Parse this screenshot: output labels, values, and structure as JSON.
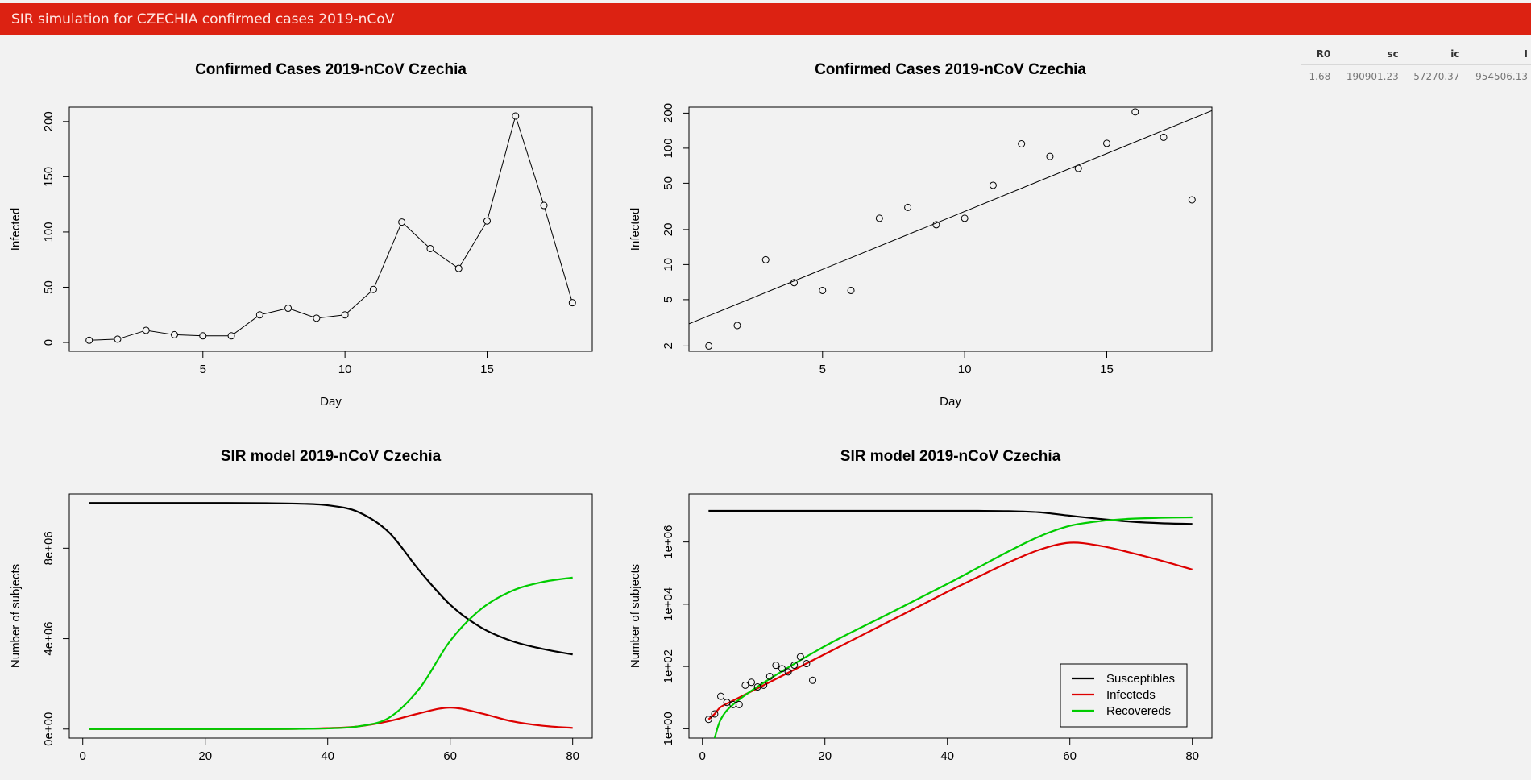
{
  "app": {
    "title": "SIR simulation for CZECHIA confirmed cases 2019-nCoV"
  },
  "params_table": {
    "headers": [
      "R0",
      "sc",
      "ic",
      "I"
    ],
    "rows": [
      [
        "1.68",
        "190901.23",
        "57270.37",
        "954506.13"
      ]
    ]
  },
  "chart_data": [
    {
      "type": "line",
      "title": "Confirmed Cases 2019-nCoV Czechia",
      "xlabel": "Day",
      "ylabel": "Infected",
      "xlim": [
        0.3,
        18.7
      ],
      "ylim": [
        -8,
        213
      ],
      "xticks": [
        5,
        10,
        15
      ],
      "yticks": [
        0,
        50,
        100,
        150,
        200
      ],
      "x": [
        1,
        2,
        3,
        4,
        5,
        6,
        7,
        8,
        9,
        10,
        11,
        12,
        13,
        14,
        15,
        16,
        17,
        18
      ],
      "values": [
        2,
        3,
        11,
        7,
        6,
        6,
        25,
        31,
        22,
        25,
        48,
        109,
        85,
        67,
        110,
        205,
        124,
        36
      ],
      "markers": "circle",
      "grid": false
    },
    {
      "type": "scatter",
      "title": "Confirmed Cases 2019-nCoV Czechia",
      "xlabel": "Day",
      "ylabel": "Infected",
      "yscale": "log",
      "xlim": [
        0.3,
        18.7
      ],
      "ylim": [
        1.8,
        225
      ],
      "xticks": [
        5,
        10,
        15
      ],
      "yticks": [
        2,
        5,
        10,
        20,
        50,
        100,
        200
      ],
      "x": [
        1,
        2,
        3,
        4,
        5,
        6,
        7,
        8,
        9,
        10,
        11,
        12,
        13,
        14,
        15,
        16,
        17,
        18
      ],
      "values": [
        2,
        3,
        11,
        7,
        6,
        6,
        25,
        31,
        22,
        25,
        48,
        109,
        85,
        67,
        110,
        205,
        124,
        36
      ],
      "fit_line": {
        "x": [
          0.3,
          18.7
        ],
        "y": [
          3.1,
          210
        ]
      },
      "grid": false
    },
    {
      "type": "line",
      "title": "SIR model 2019-nCoV Czechia",
      "xlabel": "",
      "ylabel": "Number of subjects",
      "xlim": [
        -2.2,
        83.2
      ],
      "ylim": [
        -400000,
        10400000
      ],
      "xticks": [
        0,
        20,
        40,
        60,
        80
      ],
      "yticks": [
        0,
        4000000,
        8000000
      ],
      "ytick_labels": [
        "0e+00",
        "4e+06",
        "8e+06"
      ],
      "x": [
        1,
        10,
        20,
        30,
        35,
        40,
        45,
        50,
        55,
        60,
        65,
        70,
        75,
        80
      ],
      "series": [
        {
          "color": "#000000",
          "values": [
            10000000,
            10000000,
            10000000,
            9990000,
            9970000,
            9900000,
            9600000,
            8700000,
            7000000,
            5500000,
            4500000,
            3900000,
            3550000,
            3300000
          ]
        },
        {
          "color": "#dd0000",
          "values": [
            2,
            10,
            60,
            2000,
            10000,
            40000,
            120000,
            350000,
            700000,
            950000,
            700000,
            350000,
            150000,
            50000
          ]
        },
        {
          "color": "#00cc00",
          "values": [
            0,
            5,
            40,
            1500,
            8000,
            30000,
            120000,
            500000,
            1800000,
            3900000,
            5300000,
            6100000,
            6500000,
            6700000
          ]
        }
      ],
      "grid": false
    },
    {
      "type": "line",
      "title": "SIR model 2019-nCoV Czechia",
      "xlabel": "",
      "ylabel": "Number of subjects",
      "yscale": "log",
      "xlim": [
        -2.2,
        83.2
      ],
      "ylim": [
        0.5,
        35000000
      ],
      "xticks": [
        0,
        20,
        40,
        60,
        80
      ],
      "yticks": [
        1,
        100,
        10000,
        1000000
      ],
      "ytick_labels": [
        "1e+00",
        "1e+02",
        "1e+04",
        "1e+06"
      ],
      "x": [
        1,
        2,
        3,
        5,
        10,
        20,
        30,
        40,
        45,
        50,
        55,
        60,
        65,
        70,
        75,
        80
      ],
      "series": [
        {
          "name": "Susceptibles",
          "color": "#000000",
          "values": [
            10000000,
            10000000,
            10000000,
            10000000,
            10000000,
            10000000,
            10000000,
            10000000,
            9990000,
            9800000,
            9000000,
            7000000,
            5500000,
            4500000,
            4000000,
            3800000
          ]
        },
        {
          "name": "Infecteds",
          "color": "#dd0000",
          "values": [
            2,
            3,
            5,
            8,
            25,
            250,
            2500,
            25000,
            75000,
            220000,
            560000,
            950000,
            750000,
            450000,
            250000,
            130000
          ]
        },
        {
          "name": "Recovereds",
          "color": "#00cc00",
          "values": [
            null,
            0.5,
            2,
            6,
            30,
            450,
            4500,
            45000,
            150000,
            500000,
            1500000,
            3300000,
            4700000,
            5600000,
            6000000,
            6200000
          ]
        }
      ],
      "observed": {
        "x": [
          1,
          2,
          3,
          4,
          5,
          6,
          7,
          8,
          9,
          10,
          11,
          12,
          13,
          14,
          15,
          16,
          17,
          18
        ],
        "values": [
          2,
          3,
          11,
          7,
          6,
          6,
          25,
          31,
          22,
          25,
          48,
          109,
          85,
          67,
          110,
          205,
          124,
          36
        ]
      },
      "legend": "bottom-right",
      "grid": false
    }
  ]
}
